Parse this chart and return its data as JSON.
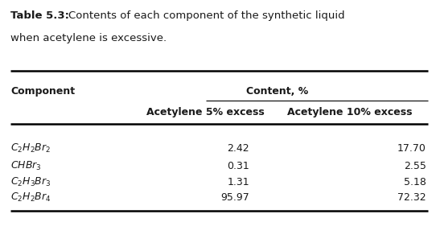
{
  "title_bold": "Table 5.3:",
  "title_rest": " Contents of each component of the synthetic liquid\nwhen acetylene is excessive.",
  "col_header_1": "Component",
  "col_header_2": "Content, %",
  "sub_header_1": "Acetylene 5% excess",
  "sub_header_2": "Acetylene 10% excess",
  "components_latex": [
    "$C_2H_2Br_2$",
    "$CHBr_3$",
    "$C_2H_3Br_3$",
    "$C_2H_2Br_4$"
  ],
  "values_5pct": [
    "2.42",
    "0.31",
    "1.31",
    "95.97"
  ],
  "values_10pct": [
    "17.70",
    "2.55",
    "5.18",
    "72.32"
  ],
  "bg_color": "#ffffff",
  "text_color": "#1a1a1a",
  "title_fontsize": 9.5,
  "table_fontsize": 9.0,
  "figw": 5.42,
  "figh": 3.07,
  "dpi": 100
}
